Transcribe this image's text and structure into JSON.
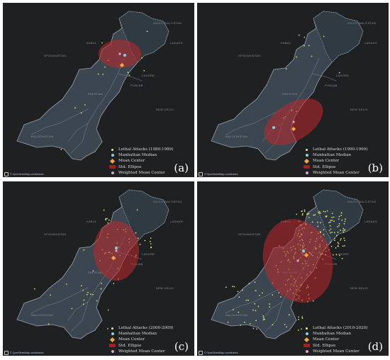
{
  "basemap": {
    "attribution": "© OpenStreetMap contributors",
    "attribution_icon": "info-icon",
    "place_labels": [
      "AFGHANISTAN",
      "PAKISTAN",
      "BALOCHISTAN",
      "KABUL",
      "NEW DELHI",
      "LAHORE",
      "GILGIT BALTISTAN",
      "LADAKH",
      "PUNJAB"
    ]
  },
  "colors": {
    "background": "#1e2022",
    "country_fill": "#3b4650",
    "border": "#9aa3ab",
    "ellipse": "#c0282c",
    "attack_dot": "#e8f07a",
    "manhattan_median": "#7fd8e0",
    "mean_center": "#f0a83a",
    "weighted_mean": "#d6a3d0"
  },
  "legend_common": {
    "median": "Manhattan Median",
    "mean": "Mean Center",
    "ellipse": "Std. Ellipse",
    "weighted": "Weighted Mean Center"
  },
  "panels": [
    {
      "label": "(a)",
      "attacks_label": "Lethal Attacks (1980-1989)",
      "attack_count": "few",
      "ellipse_center": "northern Khyber Pakhtunkhwa / Islamabad"
    },
    {
      "label": "(b)",
      "attacks_label": "Lethal Attacks (1990-1999)",
      "attack_count": "few",
      "ellipse_center": "southern Punjab / Sindh"
    },
    {
      "label": "(c)",
      "attacks_label": "Lethal Attacks (2000-2009)",
      "attack_count": "moderate",
      "ellipse_center": "Khyber Pakhtunkhwa / Punjab"
    },
    {
      "label": "(d)",
      "attacks_label": "Lethal Attacks (2010-2020)",
      "attack_count": "many",
      "ellipse_center": "Khyber Pakhtunkhwa / Punjab"
    }
  ]
}
